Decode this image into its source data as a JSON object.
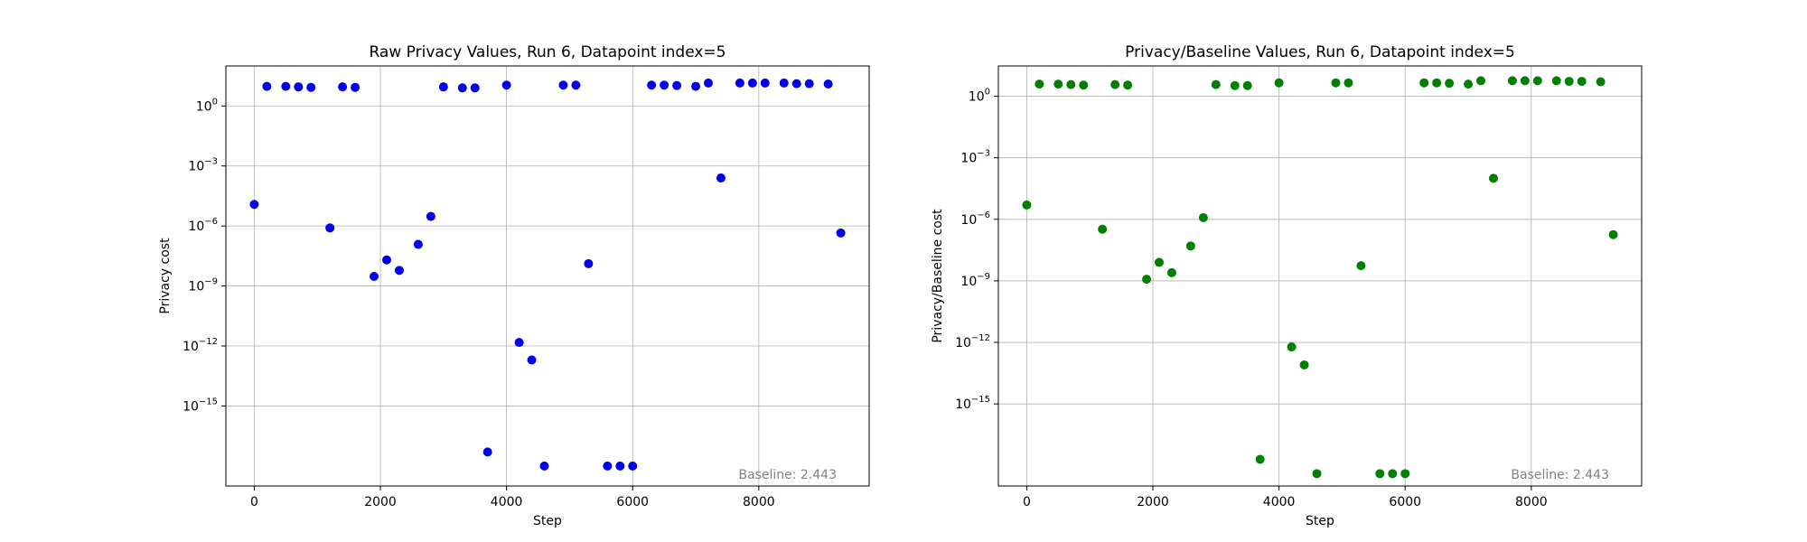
{
  "chart_data": [
    {
      "type": "scatter",
      "title": "Raw Privacy Values, Run 6, Datapoint index=5",
      "xlabel": "Step",
      "ylabel": "Privacy cost",
      "yscale": "log",
      "xlim": [
        -450,
        9750
      ],
      "ylim": [
        1e-19,
        100
      ],
      "grid": true,
      "color": "#0000ee",
      "annotation": "Baseline: 2.443",
      "xticks": [
        0,
        2000,
        4000,
        6000,
        8000
      ],
      "xtick_labels": [
        "0",
        "2000",
        "4000",
        "6000",
        "8000"
      ],
      "yticks": [
        1e-15,
        1e-12,
        1e-09,
        1e-06,
        0.001,
        1
      ],
      "ytick_labels": [
        "10^-15",
        "10^-12",
        "10^-9",
        "10^-6",
        "10^-3",
        "10^0"
      ],
      "x": [
        0,
        200,
        500,
        700,
        900,
        1200,
        1400,
        1600,
        1900,
        2100,
        2300,
        2600,
        2800,
        3000,
        3300,
        3500,
        3700,
        4000,
        4200,
        4400,
        4600,
        4900,
        5100,
        5300,
        5600,
        5800,
        6000,
        6300,
        6500,
        6700,
        7000,
        7200,
        7400,
        7700,
        7900,
        8100,
        8400,
        8600,
        8800,
        9100,
        9300
      ],
      "y": [
        1.2e-05,
        9.5,
        9.5,
        9.0,
        8.5,
        8e-07,
        9.0,
        8.5,
        3e-09,
        2e-08,
        6e-09,
        1.2e-07,
        3e-06,
        9.0,
        8.0,
        8.0,
        5e-18,
        11.0,
        1.5e-12,
        2e-13,
        1e-18,
        11.0,
        11.0,
        1.3e-08,
        1e-18,
        1e-18,
        1e-18,
        11.0,
        11.0,
        10.5,
        9.5,
        14.0,
        0.00025,
        14.0,
        14.0,
        14.0,
        14.0,
        13.0,
        13.0,
        12.5,
        4.5e-07
      ]
    },
    {
      "type": "scatter",
      "title": "Privacy/Baseline Values, Run 6, Datapoint index=5",
      "xlabel": "Step",
      "ylabel": "Privacy/Baseline cost",
      "yscale": "log",
      "xlim": [
        -450,
        9750
      ],
      "ylim": [
        1e-19,
        30
      ],
      "grid": true,
      "color": "#008000",
      "annotation": "Baseline: 2.443",
      "xticks": [
        0,
        2000,
        4000,
        6000,
        8000
      ],
      "xtick_labels": [
        "0",
        "2000",
        "4000",
        "6000",
        "8000"
      ],
      "yticks": [
        1e-15,
        1e-12,
        1e-09,
        1e-06,
        0.001,
        1
      ],
      "ytick_labels": [
        "10^-15",
        "10^-12",
        "10^-9",
        "10^-6",
        "10^-3",
        "10^0"
      ],
      "x": [
        0,
        200,
        500,
        700,
        900,
        1200,
        1400,
        1600,
        1900,
        2100,
        2300,
        2600,
        2800,
        3000,
        3300,
        3500,
        3700,
        4000,
        4200,
        4400,
        4600,
        4900,
        5100,
        5300,
        5600,
        5800,
        6000,
        6300,
        6500,
        6700,
        7000,
        7200,
        7400,
        7700,
        7900,
        8100,
        8400,
        8600,
        8800,
        9100,
        9300
      ],
      "y": [
        5e-06,
        3.9,
        3.9,
        3.7,
        3.5,
        3.3e-07,
        3.7,
        3.5,
        1.2e-09,
        8e-09,
        2.5e-09,
        5e-08,
        1.2e-06,
        3.7,
        3.3,
        3.3,
        2e-18,
        4.5,
        6e-13,
        8e-14,
        4e-19,
        4.5,
        4.5,
        5.5e-09,
        4e-19,
        4e-19,
        4e-19,
        4.5,
        4.5,
        4.3,
        3.9,
        5.7,
        0.0001,
        5.7,
        5.7,
        5.7,
        5.7,
        5.3,
        5.3,
        5.1,
        1.8e-07
      ]
    }
  ]
}
